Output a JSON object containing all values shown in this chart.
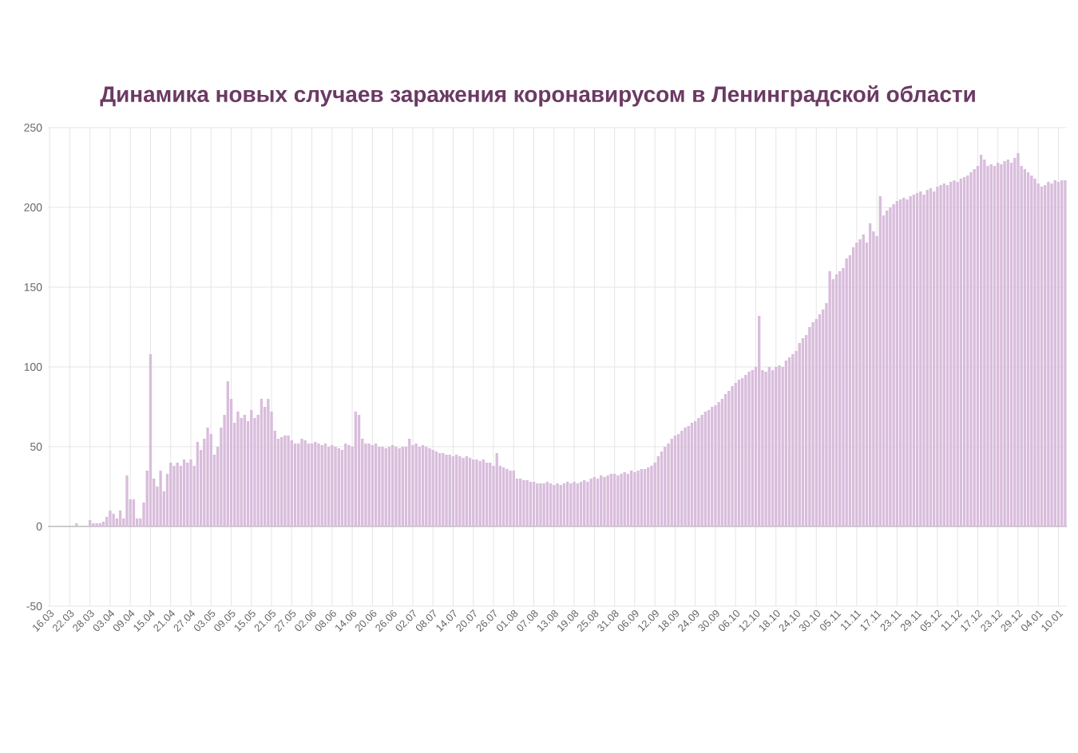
{
  "chart_data": {
    "type": "bar",
    "title": "Динамика новых случаев заражения коронавирусом в Ленинградской области",
    "categories": [
      "16.03",
      null,
      null,
      null,
      null,
      null,
      "22.03",
      null,
      null,
      null,
      null,
      null,
      "28.03",
      null,
      null,
      null,
      null,
      null,
      "03.04",
      null,
      null,
      null,
      null,
      null,
      "09.04",
      null,
      null,
      null,
      null,
      null,
      "15.04",
      null,
      null,
      null,
      null,
      null,
      "21.04",
      null,
      null,
      null,
      null,
      null,
      "27.04",
      null,
      null,
      null,
      null,
      null,
      "03.05",
      null,
      null,
      null,
      null,
      null,
      "09.05",
      null,
      null,
      null,
      null,
      null,
      "15.05",
      null,
      null,
      null,
      null,
      null,
      "21.05",
      null,
      null,
      null,
      null,
      null,
      "27.05",
      null,
      null,
      null,
      null,
      null,
      "02.06",
      null,
      null,
      null,
      null,
      null,
      "08.06",
      null,
      null,
      null,
      null,
      null,
      "14.06",
      null,
      null,
      null,
      null,
      null,
      "20.06",
      null,
      null,
      null,
      null,
      null,
      "26.06",
      null,
      null,
      null,
      null,
      null,
      "02.07",
      null,
      null,
      null,
      null,
      null,
      "08.07",
      null,
      null,
      null,
      null,
      null,
      "14.07",
      null,
      null,
      null,
      null,
      null,
      "20.07",
      null,
      null,
      null,
      null,
      null,
      "26.07",
      null,
      null,
      null,
      null,
      null,
      "01.08",
      null,
      null,
      null,
      null,
      null,
      "07.08",
      null,
      null,
      null,
      null,
      null,
      "13.08",
      null,
      null,
      null,
      null,
      null,
      "19.08",
      null,
      null,
      null,
      null,
      null,
      "25.08",
      null,
      null,
      null,
      null,
      null,
      "31.08",
      null,
      null,
      null,
      null,
      null,
      "06.09",
      null,
      null,
      null,
      null,
      null,
      "12.09",
      null,
      null,
      null,
      null,
      null,
      "18.09",
      null,
      null,
      null,
      null,
      null,
      "24.09",
      null,
      null,
      null,
      null,
      null,
      "30.09",
      null,
      null,
      null,
      null,
      null,
      "06.10",
      null,
      null,
      null,
      null,
      null,
      "12.10",
      null,
      null,
      null,
      null,
      null,
      "18.10",
      null,
      null,
      null,
      null,
      null,
      "24.10",
      null,
      null,
      null,
      null,
      null,
      "30.10",
      null,
      null,
      null,
      null,
      null,
      "05.11",
      null,
      null,
      null,
      null,
      null,
      "11.11",
      null,
      null,
      null,
      null,
      null,
      "17.11",
      null,
      null,
      null,
      null,
      null,
      "23.11",
      null,
      null,
      null,
      null,
      null,
      "29.11",
      null,
      null,
      null,
      null,
      null,
      "05.12",
      null,
      null,
      null,
      null,
      null,
      "11.12",
      null,
      null,
      null,
      null,
      null,
      "17.12",
      null,
      null,
      null,
      null,
      null,
      "23.12",
      null,
      null,
      null,
      null,
      null,
      "29.12",
      null,
      null,
      null,
      null,
      null,
      "04.01",
      null,
      null,
      null,
      null,
      null,
      "10.01",
      null,
      null
    ],
    "values": [
      null,
      0,
      0,
      0,
      0,
      0,
      0,
      0,
      2,
      0,
      0,
      null,
      4,
      2,
      2,
      2,
      3,
      6,
      10,
      8,
      5,
      10,
      5,
      32,
      17,
      17,
      5,
      5,
      15,
      35,
      108,
      30,
      25,
      35,
      22,
      33,
      40,
      38,
      40,
      38,
      42,
      40,
      42,
      38,
      53,
      48,
      55,
      62,
      58,
      45,
      50,
      62,
      70,
      91,
      80,
      65,
      72,
      68,
      70,
      66,
      73,
      68,
      70,
      80,
      75,
      80,
      72,
      60,
      55,
      56,
      57,
      57,
      54,
      52,
      52,
      55,
      54,
      52,
      52,
      53,
      52,
      51,
      52,
      50,
      51,
      50,
      49,
      48,
      52,
      51,
      50,
      72,
      70,
      55,
      52,
      52,
      51,
      52,
      50,
      50,
      49,
      50,
      51,
      50,
      49,
      50,
      50,
      55,
      51,
      52,
      50,
      51,
      50,
      49,
      48,
      47,
      46,
      46,
      45,
      45,
      44,
      45,
      44,
      43,
      44,
      43,
      42,
      42,
      41,
      42,
      40,
      40,
      38,
      46,
      38,
      37,
      36,
      35,
      35,
      30,
      30,
      29,
      29,
      28,
      28,
      27,
      27,
      27,
      28,
      27,
      26,
      27,
      26,
      27,
      28,
      27,
      28,
      27,
      28,
      29,
      28,
      30,
      31,
      30,
      32,
      31,
      32,
      33,
      33,
      32,
      33,
      34,
      33,
      35,
      34,
      35,
      36,
      36,
      37,
      38,
      40,
      44,
      47,
      50,
      52,
      55,
      57,
      58,
      60,
      62,
      63,
      65,
      66,
      68,
      70,
      72,
      73,
      75,
      76,
      78,
      80,
      83,
      85,
      88,
      90,
      92,
      93,
      95,
      97,
      98,
      100,
      132,
      98,
      97,
      100,
      98,
      100,
      101,
      100,
      104,
      106,
      108,
      110,
      115,
      118,
      120,
      125,
      128,
      130,
      133,
      136,
      140,
      160,
      155,
      158,
      160,
      162,
      168,
      170,
      175,
      178,
      180,
      183,
      178,
      190,
      185,
      182,
      207,
      195,
      198,
      200,
      202,
      204,
      205,
      206,
      205,
      207,
      208,
      209,
      210,
      208,
      211,
      212,
      210,
      213,
      214,
      215,
      214,
      216,
      217,
      216,
      218,
      219,
      220,
      222,
      224,
      226,
      233,
      230,
      226,
      227,
      226,
      228,
      227,
      229,
      230,
      228,
      231,
      234,
      226,
      224,
      222,
      220,
      218,
      215,
      213,
      214,
      216,
      215,
      217,
      216,
      217,
      217
    ],
    "color": "#d9bddc",
    "ylim": [
      -50,
      250
    ],
    "yticks": [
      -50,
      0,
      50,
      100,
      150,
      200,
      250
    ],
    "grid": true
  }
}
